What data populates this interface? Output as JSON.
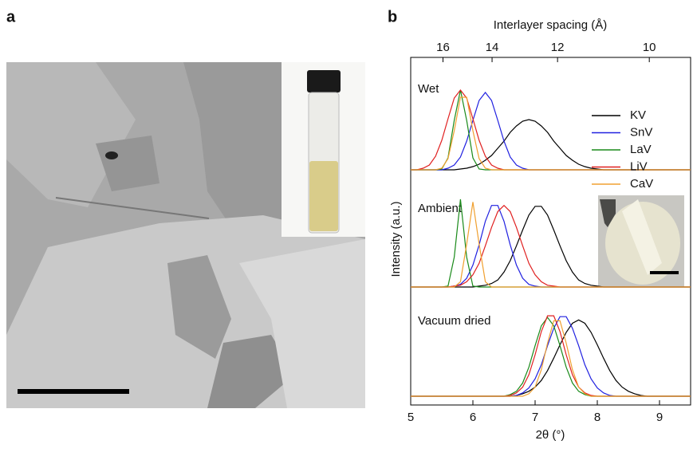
{
  "panel_labels": [
    "a",
    "b"
  ],
  "chart_data": {
    "type": "line",
    "x_label": "2θ (°)",
    "x2_label": "Interlayer spacing (Å)",
    "y_label": "Intensity (a.u.)",
    "xlim": [
      5,
      9.5
    ],
    "xticks": [
      5,
      6,
      7,
      8,
      9
    ],
    "x2ticks": [
      16,
      14,
      12,
      10
    ],
    "legend": "upper right",
    "x": [
      5.0,
      5.1,
      5.2,
      5.3,
      5.4,
      5.5,
      5.6,
      5.7,
      5.8,
      5.9,
      6.0,
      6.1,
      6.2,
      6.3,
      6.4,
      6.5,
      6.6,
      6.7,
      6.8,
      6.9,
      7.0,
      7.1,
      7.2,
      7.3,
      7.4,
      7.5,
      7.6,
      7.7,
      7.8,
      7.9,
      8.0,
      8.1,
      8.2,
      8.3,
      8.4,
      8.5,
      8.6,
      8.7,
      8.8,
      8.9,
      9.0,
      9.1,
      9.2,
      9.3,
      9.4,
      9.5
    ],
    "series": [
      {
        "name": "KV",
        "color": "#000000"
      },
      {
        "name": "SnV",
        "color": "#2020e0"
      },
      {
        "name": "LaV",
        "color": "#1a8a1a"
      },
      {
        "name": "LiV",
        "color": "#e02020"
      },
      {
        "name": "CaV",
        "color": "#f0a030"
      }
    ],
    "groups": [
      {
        "label": "Wet",
        "values": [
          [
            0,
            0,
            0,
            0,
            0,
            0,
            0,
            0,
            0.01,
            0.02,
            0.04,
            0.07,
            0.12,
            0.18,
            0.27,
            0.36,
            0.47,
            0.55,
            0.61,
            0.63,
            0.61,
            0.55,
            0.47,
            0.36,
            0.27,
            0.18,
            0.12,
            0.07,
            0.04,
            0.02,
            0.01,
            0,
            0,
            0,
            0,
            0,
            0,
            0,
            0,
            0,
            0,
            0,
            0,
            0,
            0,
            0
          ],
          [
            0,
            0,
            0,
            0,
            0,
            0,
            0.02,
            0.06,
            0.16,
            0.36,
            0.62,
            0.87,
            0.97,
            0.87,
            0.62,
            0.36,
            0.16,
            0.06,
            0.02,
            0,
            0,
            0,
            0,
            0,
            0,
            0,
            0,
            0,
            0,
            0,
            0,
            0,
            0,
            0,
            0,
            0,
            0,
            0,
            0,
            0,
            0,
            0,
            0,
            0,
            0,
            0
          ],
          [
            0,
            0,
            0,
            0,
            0,
            0.01,
            0.15,
            0.62,
            1,
            0.62,
            0.15,
            0.01,
            0,
            0,
            0,
            0,
            0,
            0,
            0,
            0,
            0,
            0,
            0,
            0,
            0,
            0,
            0,
            0,
            0,
            0,
            0,
            0,
            0,
            0,
            0,
            0,
            0,
            0,
            0,
            0,
            0,
            0,
            0,
            0,
            0,
            0
          ],
          [
            0,
            0,
            0.02,
            0.06,
            0.17,
            0.37,
            0.64,
            0.9,
            1,
            0.9,
            0.64,
            0.37,
            0.17,
            0.06,
            0.02,
            0,
            0,
            0,
            0,
            0,
            0,
            0,
            0,
            0,
            0,
            0,
            0,
            0,
            0,
            0,
            0,
            0,
            0,
            0,
            0,
            0,
            0,
            0,
            0,
            0,
            0,
            0,
            0,
            0,
            0,
            0
          ],
          [
            0,
            0,
            0,
            0,
            0,
            0.02,
            0.14,
            0.49,
            0.91,
            0.91,
            0.49,
            0.14,
            0.02,
            0,
            0,
            0,
            0,
            0,
            0,
            0,
            0,
            0,
            0,
            0,
            0,
            0,
            0,
            0,
            0,
            0,
            0,
            0,
            0,
            0,
            0,
            0,
            0,
            0,
            0,
            0,
            0,
            0,
            0,
            0,
            0,
            0
          ]
        ]
      },
      {
        "label": "Ambient",
        "values": [
          [
            0,
            0,
            0,
            0,
            0,
            0,
            0,
            0,
            0,
            0,
            0,
            0.01,
            0.02,
            0.04,
            0.08,
            0.17,
            0.3,
            0.47,
            0.65,
            0.82,
            0.92,
            0.92,
            0.82,
            0.65,
            0.47,
            0.3,
            0.17,
            0.08,
            0.04,
            0.02,
            0.01,
            0,
            0,
            0,
            0,
            0,
            0,
            0,
            0,
            0,
            0,
            0,
            0,
            0,
            0,
            0
          ],
          [
            0,
            0,
            0,
            0,
            0,
            0,
            0,
            0.01,
            0.03,
            0.1,
            0.25,
            0.48,
            0.75,
            0.93,
            0.93,
            0.75,
            0.48,
            0.25,
            0.1,
            0.03,
            0.01,
            0,
            0,
            0,
            0,
            0,
            0,
            0,
            0,
            0,
            0,
            0,
            0,
            0,
            0,
            0,
            0,
            0,
            0,
            0,
            0,
            0,
            0,
            0,
            0,
            0
          ],
          [
            0,
            0,
            0,
            0,
            0,
            0,
            0.01,
            0.34,
            1,
            0.34,
            0.01,
            0,
            0,
            0,
            0,
            0,
            0,
            0,
            0,
            0,
            0,
            0,
            0,
            0,
            0,
            0,
            0,
            0,
            0,
            0,
            0,
            0,
            0,
            0,
            0,
            0,
            0,
            0,
            0,
            0,
            0,
            0,
            0,
            0,
            0,
            0
          ],
          [
            0,
            0,
            0,
            0,
            0,
            0,
            0,
            0.01,
            0.02,
            0.06,
            0.14,
            0.27,
            0.47,
            0.68,
            0.86,
            0.93,
            0.86,
            0.68,
            0.47,
            0.27,
            0.14,
            0.06,
            0.02,
            0.01,
            0,
            0,
            0,
            0,
            0,
            0,
            0,
            0,
            0,
            0,
            0,
            0,
            0,
            0,
            0,
            0,
            0,
            0,
            0,
            0,
            0,
            0
          ],
          [
            0,
            0,
            0,
            0,
            0,
            0,
            0,
            0,
            0.06,
            0.49,
            0.97,
            0.49,
            0.06,
            0,
            0,
            0,
            0,
            0,
            0,
            0,
            0,
            0,
            0,
            0,
            0,
            0,
            0,
            0,
            0,
            0,
            0,
            0,
            0,
            0,
            0,
            0,
            0,
            0,
            0,
            0,
            0,
            0,
            0,
            0,
            0,
            0
          ]
        ]
      },
      {
        "label": "Vacuum dried",
        "values": [
          [
            0,
            0,
            0,
            0,
            0,
            0,
            0,
            0,
            0,
            0,
            0,
            0,
            0,
            0,
            0,
            0,
            0,
            0.01,
            0.03,
            0.06,
            0.11,
            0.19,
            0.31,
            0.46,
            0.62,
            0.77,
            0.88,
            0.92,
            0.88,
            0.77,
            0.62,
            0.46,
            0.31,
            0.19,
            0.11,
            0.06,
            0.03,
            0.01,
            0,
            0,
            0,
            0,
            0,
            0,
            0,
            0
          ],
          [
            0,
            0,
            0,
            0,
            0,
            0,
            0,
            0,
            0,
            0,
            0,
            0,
            0,
            0,
            0,
            0,
            0,
            0.01,
            0.04,
            0.1,
            0.21,
            0.38,
            0.61,
            0.82,
            0.96,
            0.96,
            0.82,
            0.61,
            0.38,
            0.21,
            0.1,
            0.04,
            0.01,
            0,
            0,
            0,
            0,
            0,
            0,
            0,
            0,
            0,
            0,
            0,
            0,
            0
          ],
          [
            0,
            0,
            0,
            0,
            0,
            0,
            0,
            0,
            0,
            0,
            0,
            0,
            0,
            0,
            0,
            0,
            0.02,
            0.06,
            0.16,
            0.35,
            0.61,
            0.85,
            0.95,
            0.85,
            0.61,
            0.35,
            0.16,
            0.06,
            0.02,
            0,
            0,
            0,
            0,
            0,
            0,
            0,
            0,
            0,
            0,
            0,
            0,
            0,
            0,
            0,
            0,
            0
          ],
          [
            0,
            0,
            0,
            0,
            0,
            0,
            0,
            0,
            0,
            0,
            0,
            0,
            0,
            0,
            0,
            0,
            0.01,
            0.04,
            0.11,
            0.26,
            0.5,
            0.78,
            0.97,
            0.97,
            0.78,
            0.5,
            0.26,
            0.11,
            0.04,
            0.01,
            0,
            0,
            0,
            0,
            0,
            0,
            0,
            0,
            0,
            0,
            0,
            0,
            0,
            0,
            0,
            0
          ],
          [
            0,
            0,
            0,
            0,
            0,
            0,
            0,
            0,
            0,
            0,
            0,
            0,
            0,
            0,
            0,
            0,
            0,
            0,
            0,
            0.03,
            0.11,
            0.32,
            0.64,
            0.91,
            0.91,
            0.64,
            0.32,
            0.11,
            0.03,
            0,
            0,
            0,
            0,
            0,
            0,
            0,
            0,
            0,
            0,
            0,
            0,
            0,
            0,
            0,
            0,
            0
          ]
        ]
      }
    ]
  }
}
